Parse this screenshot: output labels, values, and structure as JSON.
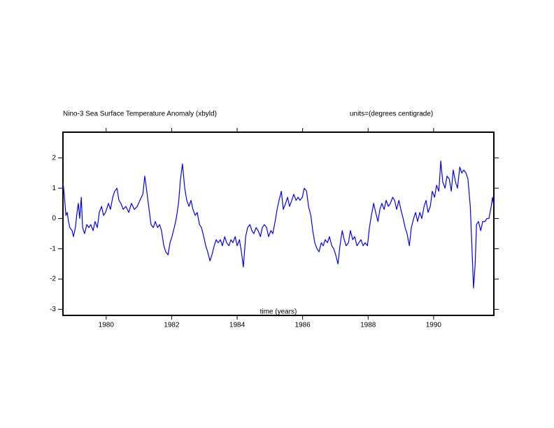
{
  "chart_data": {
    "type": "line",
    "title": "Nino-3 Sea Surface Temperature Anomaly (xbyld)",
    "subtitle": "units=(degrees centigrade)",
    "x_label": "time (years)",
    "color": "#0000ff",
    "xlim": [
      1978.68,
      1991.84
    ],
    "ylim": [
      -3.2,
      2.85
    ],
    "xticks": [
      1980,
      1982,
      1984,
      1986,
      1988,
      1990
    ],
    "yticks": [
      -3,
      -2,
      -1,
      0,
      1,
      2
    ],
    "x": [
      1978.68,
      1978.72,
      1978.77,
      1978.81,
      1978.85,
      1978.89,
      1978.96,
      1979.0,
      1979.06,
      1979.11,
      1979.15,
      1979.19,
      1979.24,
      1979.28,
      1979.34,
      1979.41,
      1979.47,
      1979.53,
      1979.6,
      1979.66,
      1979.73,
      1979.79,
      1979.86,
      1979.92,
      1979.98,
      1980.07,
      1980.13,
      1980.2,
      1980.26,
      1980.33,
      1980.39,
      1980.45,
      1980.52,
      1980.6,
      1980.69,
      1980.77,
      1980.86,
      1980.95,
      1981.03,
      1981.12,
      1981.18,
      1981.24,
      1981.31,
      1981.37,
      1981.44,
      1981.5,
      1981.57,
      1981.63,
      1981.69,
      1981.76,
      1981.82,
      1981.89,
      1981.95,
      1982.01,
      1982.08,
      1982.14,
      1982.21,
      1982.27,
      1982.33,
      1982.4,
      1982.46,
      1982.53,
      1982.59,
      1982.65,
      1982.72,
      1982.78,
      1982.85,
      1982.91,
      1982.98,
      1983.04,
      1983.1,
      1983.17,
      1983.23,
      1983.3,
      1983.36,
      1983.42,
      1983.49,
      1983.55,
      1983.62,
      1983.68,
      1983.75,
      1983.81,
      1983.87,
      1983.94,
      1984.0,
      1984.07,
      1984.13,
      1984.19,
      1984.26,
      1984.32,
      1984.39,
      1984.45,
      1984.51,
      1984.58,
      1984.64,
      1984.71,
      1984.77,
      1984.83,
      1984.9,
      1984.96,
      1985.03,
      1985.09,
      1985.16,
      1985.22,
      1985.28,
      1985.35,
      1985.41,
      1985.48,
      1985.54,
      1985.6,
      1985.67,
      1985.73,
      1985.8,
      1985.86,
      1985.92,
      1985.99,
      1986.05,
      1986.12,
      1986.18,
      1986.25,
      1986.31,
      1986.37,
      1986.44,
      1986.5,
      1986.57,
      1986.63,
      1986.69,
      1986.76,
      1986.82,
      1986.89,
      1986.95,
      1987.01,
      1987.08,
      1987.14,
      1987.21,
      1987.27,
      1987.33,
      1987.4,
      1987.46,
      1987.53,
      1987.59,
      1987.66,
      1987.72,
      1987.78,
      1987.85,
      1987.91,
      1987.98,
      1988.04,
      1988.1,
      1988.17,
      1988.23,
      1988.3,
      1988.36,
      1988.42,
      1988.49,
      1988.55,
      1988.62,
      1988.68,
      1988.75,
      1988.81,
      1988.87,
      1988.94,
      1989.0,
      1989.07,
      1989.13,
      1989.19,
      1989.26,
      1989.32,
      1989.39,
      1989.45,
      1989.51,
      1989.58,
      1989.64,
      1989.71,
      1989.77,
      1989.83,
      1989.9,
      1989.96,
      1990.03,
      1990.09,
      1990.16,
      1990.22,
      1990.28,
      1990.35,
      1990.41,
      1990.48,
      1990.54,
      1990.6,
      1990.67,
      1990.73,
      1990.8,
      1990.86,
      1990.92,
      1990.99,
      1991.05,
      1991.12,
      1991.18,
      1991.22,
      1991.27,
      1991.31,
      1991.37,
      1991.44,
      1991.5,
      1991.57,
      1991.63,
      1991.69,
      1991.76,
      1991.8,
      1991.84
    ],
    "values": [
      1.2,
      0.8,
      0.1,
      0.2,
      -0.1,
      -0.3,
      -0.4,
      -0.6,
      -0.3,
      0.2,
      0.5,
      0.0,
      0.7,
      -0.3,
      -0.5,
      -0.2,
      -0.3,
      -0.2,
      -0.4,
      -0.1,
      -0.3,
      0.2,
      0.4,
      0.1,
      0.2,
      0.5,
      0.3,
      0.7,
      0.9,
      1.0,
      0.6,
      0.5,
      0.3,
      0.4,
      0.2,
      0.5,
      0.3,
      0.4,
      0.6,
      0.8,
      1.4,
      0.9,
      0.3,
      -0.2,
      -0.3,
      -0.1,
      -0.3,
      -0.2,
      -0.4,
      -0.9,
      -1.1,
      -1.2,
      -0.8,
      -0.6,
      -0.3,
      0.0,
      0.5,
      1.3,
      1.8,
      1.0,
      0.6,
      0.4,
      0.6,
      0.3,
      0.1,
      0.2,
      -0.2,
      -0.3,
      -0.6,
      -0.9,
      -1.1,
      -1.4,
      -1.2,
      -0.9,
      -0.7,
      -0.8,
      -0.7,
      -0.9,
      -0.6,
      -0.8,
      -0.9,
      -0.7,
      -0.8,
      -0.6,
      -0.9,
      -0.7,
      -1.1,
      -1.6,
      -0.6,
      -0.3,
      -0.2,
      -0.4,
      -0.5,
      -0.3,
      -0.4,
      -0.6,
      -0.3,
      -0.2,
      -0.3,
      -0.6,
      -0.4,
      -0.5,
      -0.1,
      0.3,
      0.6,
      0.9,
      0.3,
      0.5,
      0.7,
      0.4,
      0.6,
      0.8,
      0.6,
      0.7,
      0.6,
      0.7,
      1.0,
      0.9,
      0.4,
      0.1,
      -0.4,
      -0.8,
      -1.0,
      -1.1,
      -0.8,
      -0.9,
      -0.7,
      -0.8,
      -0.6,
      -0.9,
      -1.0,
      -1.2,
      -1.5,
      -0.9,
      -0.4,
      -0.7,
      -0.9,
      -0.8,
      -0.4,
      -0.7,
      -0.6,
      -0.9,
      -0.8,
      -0.7,
      -0.9,
      -0.8,
      -0.9,
      -0.3,
      0.1,
      0.5,
      0.2,
      -0.1,
      0.3,
      0.5,
      0.3,
      0.6,
      0.4,
      0.5,
      0.7,
      0.6,
      0.3,
      0.6,
      0.3,
      0.0,
      -0.3,
      -0.5,
      -0.9,
      -0.3,
      0.0,
      0.2,
      -0.1,
      0.2,
      0.0,
      0.4,
      0.6,
      0.2,
      0.4,
      0.9,
      0.7,
      1.1,
      0.9,
      1.9,
      1.2,
      1.0,
      1.4,
      1.3,
      0.9,
      1.6,
      1.2,
      1.0,
      1.7,
      1.5,
      1.6,
      1.5,
      1.3,
      0.4,
      -1.2,
      -2.3,
      -1.5,
      -0.2,
      -0.1,
      -0.4,
      -0.1,
      -0.1,
      0.0,
      0.0,
      0.4,
      0.7,
      0.4
    ]
  }
}
